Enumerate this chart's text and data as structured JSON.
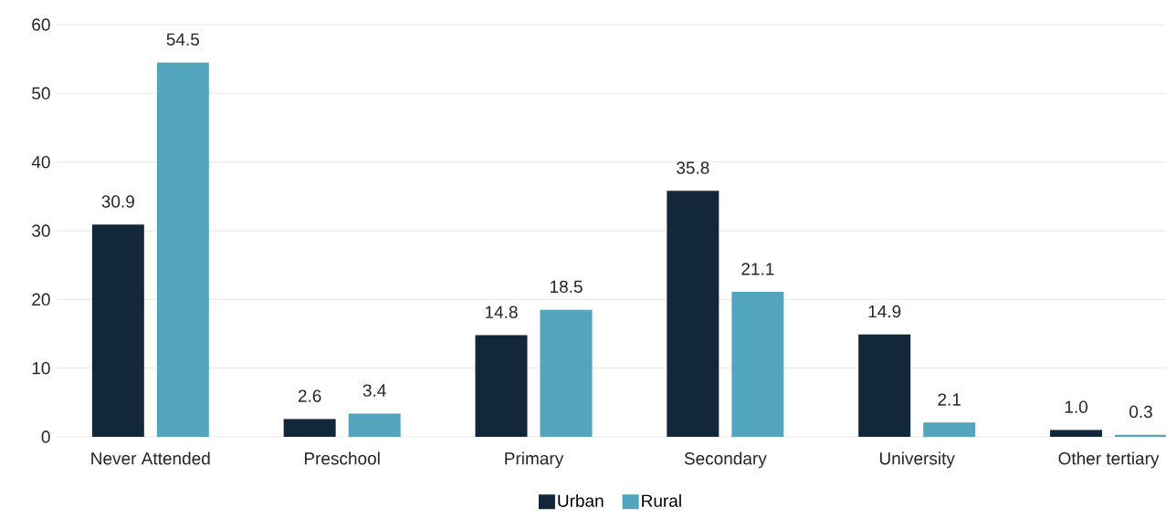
{
  "chart_data": {
    "type": "bar",
    "categories": [
      "Never Attended",
      "Preschool",
      "Primary",
      "Secondary",
      "University",
      "Other tertiary"
    ],
    "series": [
      {
        "name": "Urban",
        "color": "#13273b",
        "values": [
          30.9,
          2.6,
          14.8,
          35.8,
          14.9,
          1.0
        ],
        "value_labels": [
          "30.9",
          "2.6",
          "14.8",
          "35.8",
          "14.9",
          "1.0"
        ]
      },
      {
        "name": "Rural",
        "color": "#53a4bd",
        "values": [
          54.5,
          3.4,
          18.5,
          21.1,
          2.1,
          0.3
        ],
        "value_labels": [
          "54.5",
          "3.4",
          "18.5",
          "21.1",
          "2.1",
          "0.3"
        ]
      }
    ],
    "ylim": [
      0,
      60
    ],
    "yticks": [
      0,
      10,
      20,
      30,
      40,
      50,
      60
    ],
    "grid": "y",
    "legend": "bottom"
  }
}
